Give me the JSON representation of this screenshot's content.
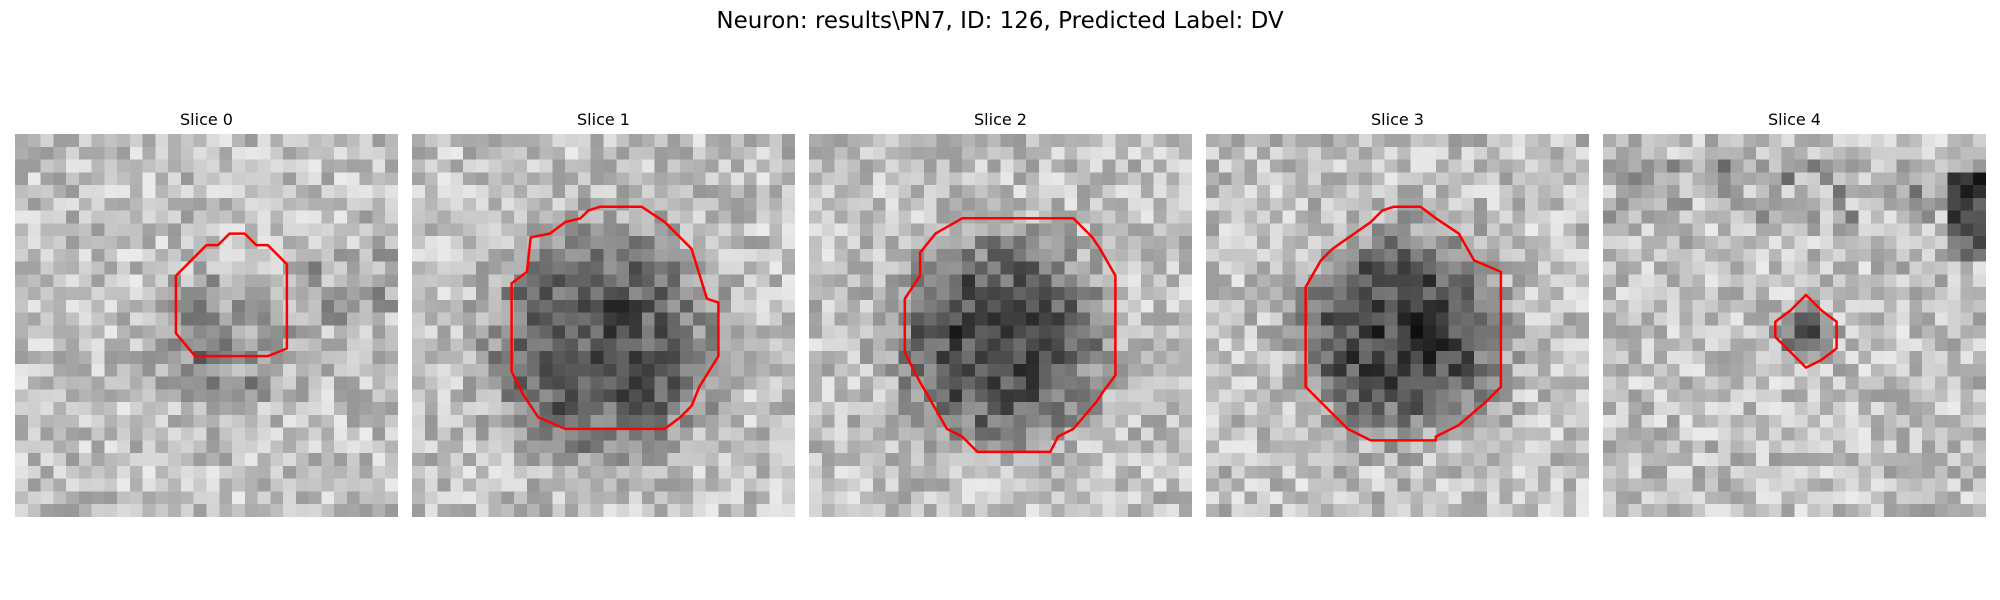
{
  "figure": {
    "title": "Neuron: results\\PN7, ID: 126, Predicted Label: DV"
  },
  "colors": {
    "contour": "#ff0000",
    "background": "#ffffff"
  },
  "panels": [
    {
      "title": "Slice 0"
    },
    {
      "title": "Slice 1"
    },
    {
      "title": "Slice 2"
    },
    {
      "title": "Slice 3"
    },
    {
      "title": "Slice 4"
    }
  ]
}
